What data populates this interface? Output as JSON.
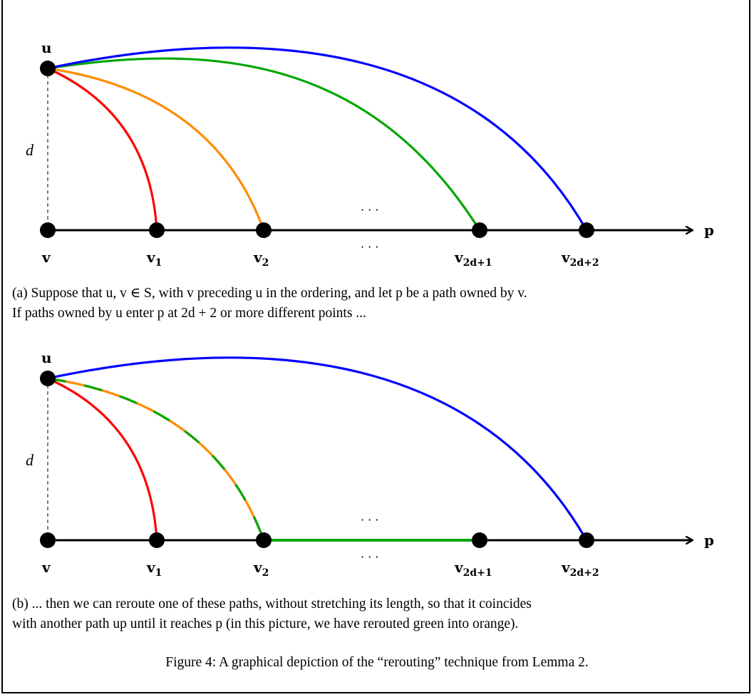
{
  "panel_a": {
    "labels": {
      "u": "u",
      "d": "d",
      "v": "v",
      "v1": "v",
      "v1_sub": "1",
      "v2": "v",
      "v2_sub": "2",
      "v2d1": "v",
      "v2d1_sub": "2d+1",
      "v2d2": "v",
      "v2d2_sub": "2d+2",
      "p": "p",
      "dots": "· · ·"
    },
    "caption": {
      "line1": "(a) Suppose that u, v ∈ S, with v preceding u in the ordering, and let p be a path owned by v.",
      "line2": "If paths owned by u enter p at 2d + 2 or more different points ..."
    }
  },
  "panel_b": {
    "labels": {
      "u": "u",
      "d": "d",
      "v": "v",
      "v1": "v",
      "v1_sub": "1",
      "v2": "v",
      "v2_sub": "2",
      "v2d1": "v",
      "v2d1_sub": "2d+1",
      "v2d2": "v",
      "v2d2_sub": "2d+2",
      "p": "p",
      "dots": "· · ·"
    },
    "caption": {
      "line1": "(b) ... then we can reroute one of these paths, without stretching its length, so that it coincides",
      "line2": "with another path up until it reaches p (in this picture, we have rerouted green into orange)."
    }
  },
  "figure_caption": "Figure 4: A graphical depiction of the “rerouting” technique from Lemma 2.",
  "colors": {
    "red": "#ff0000",
    "orange": "#ff8c00",
    "green": "#00a600",
    "blue": "#0000ff",
    "black": "#000000"
  }
}
